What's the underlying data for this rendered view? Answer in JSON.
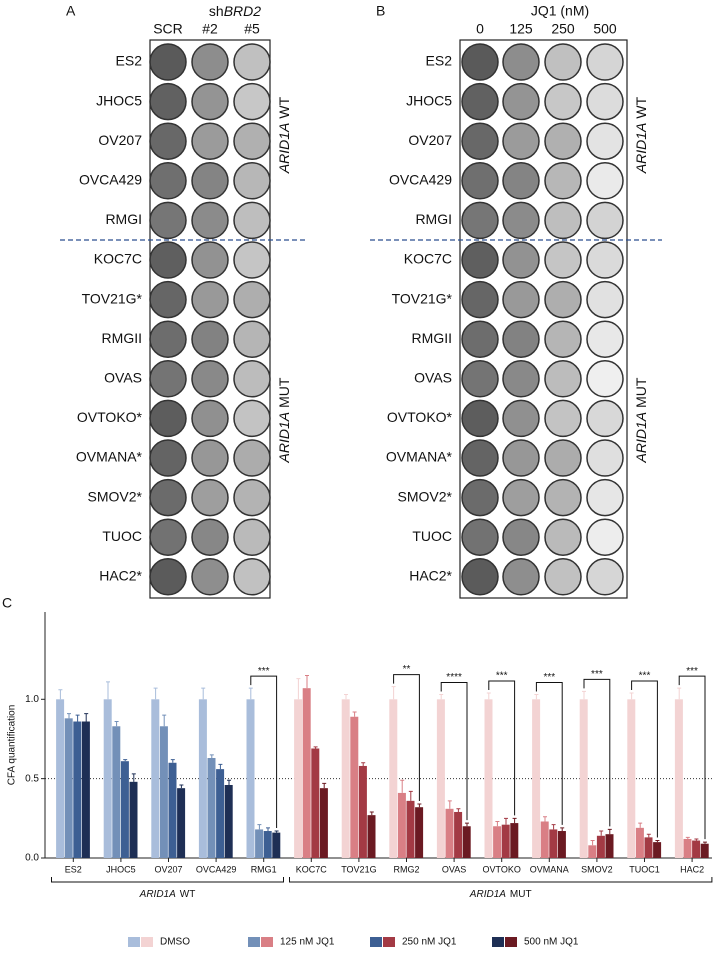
{
  "panel_a": {
    "label": "A",
    "header_prefix": "sh",
    "header_gene": "BRD2",
    "columns": [
      "SCR",
      "#2",
      "#5"
    ],
    "rows": [
      "ES2",
      "JHOC5",
      "OV207",
      "OVCA429",
      "RMGI",
      "KOC7C",
      "TOV21G*",
      "RMGII",
      "OVAS",
      "OVTOKO*",
      "OVMANA*",
      "SMOV2*",
      "TUOC",
      "HAC2*"
    ],
    "wt_label": {
      "gene": "ARID1A",
      "status": "WT"
    },
    "mut_label": {
      "gene": "ARID1A",
      "status": "MUT"
    }
  },
  "panel_b": {
    "label": "B",
    "header": "JQ1 (nM)",
    "columns": [
      "0",
      "125",
      "250",
      "500"
    ],
    "rows": [
      "ES2",
      "JHOC5",
      "OV207",
      "OVCA429",
      "RMGI",
      "KOC7C",
      "TOV21G*",
      "RMGII",
      "OVAS",
      "OVTOKO*",
      "OVMANA*",
      "SMOV2*",
      "TUOC",
      "HAC2*"
    ],
    "wt_label": {
      "gene": "ARID1A",
      "status": "WT"
    },
    "mut_label": {
      "gene": "ARID1A",
      "status": "MUT"
    }
  },
  "chart_data": {
    "type": "bar",
    "panel_label": "C",
    "ylabel": "CFA quantification",
    "ylim": [
      0,
      1.55
    ],
    "yticks": [
      {
        "value": 0,
        "label": "0.0"
      },
      {
        "value": 0.5,
        "label": "0.5"
      },
      {
        "value": 1,
        "label": "1.0"
      }
    ],
    "reference_line": 0.5,
    "series_names": [
      "DMSO",
      "125 nM JQ1",
      "250 nM JQ1",
      "500 nM JQ1"
    ],
    "groups": [
      {
        "gene": "ARID1A",
        "status": "WT",
        "categories": [
          "ES2",
          "JHOC5",
          "OV207",
          "OVCA429",
          "RMG1"
        ],
        "significance": [
          null,
          null,
          null,
          null,
          "***"
        ],
        "series": [
          {
            "color": "#a9bddb",
            "values": [
              1.0,
              1.0,
              1.0,
              1.0,
              1.0
            ],
            "errors": [
              0.06,
              0.11,
              0.07,
              0.07,
              0.07
            ]
          },
          {
            "color": "#7390b8",
            "values": [
              0.88,
              0.83,
              0.83,
              0.63,
              0.18
            ],
            "errors": [
              0.03,
              0.03,
              0.07,
              0.02,
              0.03
            ]
          },
          {
            "color": "#3d5f93",
            "values": [
              0.86,
              0.61,
              0.6,
              0.56,
              0.17
            ],
            "errors": [
              0.04,
              0.01,
              0.02,
              0.03,
              0.02
            ]
          },
          {
            "color": "#1e2f55",
            "values": [
              0.86,
              0.48,
              0.44,
              0.46,
              0.16
            ],
            "errors": [
              0.05,
              0.05,
              0.02,
              0.03,
              0.01
            ]
          }
        ]
      },
      {
        "gene": "ARID1A",
        "status": "MUT",
        "categories": [
          "KOC7C",
          "TOV21G",
          "RMG2",
          "OVAS",
          "OVTOKO",
          "OVMANA",
          "SMOV2",
          "TUOC1",
          "HAC2"
        ],
        "significance": [
          null,
          null,
          "**",
          "****",
          "***",
          "***",
          "***",
          "***",
          "***"
        ],
        "series": [
          {
            "color": "#f3d3d3",
            "values": [
              1.0,
              1.0,
              1.0,
              1.0,
              1.0,
              1.0,
              1.0,
              1.0,
              1.0
            ],
            "errors": [
              0.13,
              0.03,
              0.08,
              0.03,
              0.04,
              0.03,
              0.05,
              0.04,
              0.07
            ]
          },
          {
            "color": "#d97f85",
            "values": [
              1.07,
              0.89,
              0.41,
              0.31,
              0.2,
              0.23,
              0.08,
              0.19,
              0.12
            ],
            "errors": [
              0.08,
              0.03,
              0.08,
              0.05,
              0.03,
              0.03,
              0.03,
              0.03,
              0.01
            ]
          },
          {
            "color": "#a33a44",
            "values": [
              0.69,
              0.58,
              0.36,
              0.29,
              0.21,
              0.18,
              0.14,
              0.13,
              0.11
            ],
            "errors": [
              0.01,
              0.02,
              0.06,
              0.02,
              0.04,
              0.03,
              0.03,
              0.02,
              0.01
            ]
          },
          {
            "color": "#6b1a22",
            "values": [
              0.44,
              0.27,
              0.32,
              0.2,
              0.22,
              0.17,
              0.15,
              0.1,
              0.09
            ],
            "errors": [
              0.03,
              0.02,
              0.02,
              0.02,
              0.03,
              0.02,
              0.03,
              0.01,
              0.01
            ]
          }
        ]
      }
    ]
  }
}
